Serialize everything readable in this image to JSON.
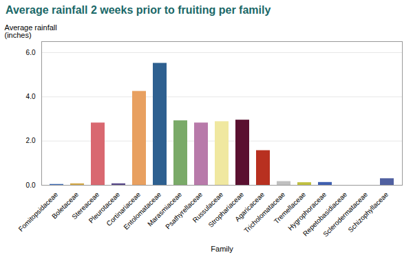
{
  "chart_data": {
    "type": "bar",
    "title": "Average rainfall 2 weeks prior to fruiting per family",
    "xlabel": "Family",
    "ylabel": "Average rainfall\n(inches)",
    "categories": [
      "Fomitopsidaceae",
      "Boletaceae",
      "Stereaceae",
      "Pleurotaceae",
      "Cortinariaceae",
      "Entolomataceae",
      "Marasmiaceae",
      "Psathyrellaceae",
      "Russulaceae",
      "Strophariaceae",
      "Agaricaceae",
      "Tricholomataceae",
      "Tremellaceae",
      "Hygrophoraceae",
      "Repetobasidiaceae",
      "Sclerodermataceae",
      "Schizophyllaceae"
    ],
    "values": [
      0.04,
      0.07,
      2.82,
      0.07,
      4.25,
      5.52,
      2.92,
      2.82,
      2.88,
      2.95,
      1.57,
      0.17,
      0.12,
      0.13,
      0.0,
      0.0,
      0.3
    ],
    "colors": [
      "#3c6ab5",
      "#d4a94a",
      "#d96870",
      "#5a4a8a",
      "#e8a060",
      "#2e6090",
      "#7aaa68",
      "#b87aaa",
      "#f0e8a0",
      "#5a1030",
      "#b83020",
      "#c0c0c0",
      "#c0c040",
      "#4060b0",
      "#c0c0c0",
      "#c0c0c0",
      "#5060a0"
    ],
    "title_color": "#1a6868",
    "ylim": [
      0,
      6.5
    ],
    "yticks": [
      0,
      2,
      4,
      6
    ],
    "grid": true
  }
}
